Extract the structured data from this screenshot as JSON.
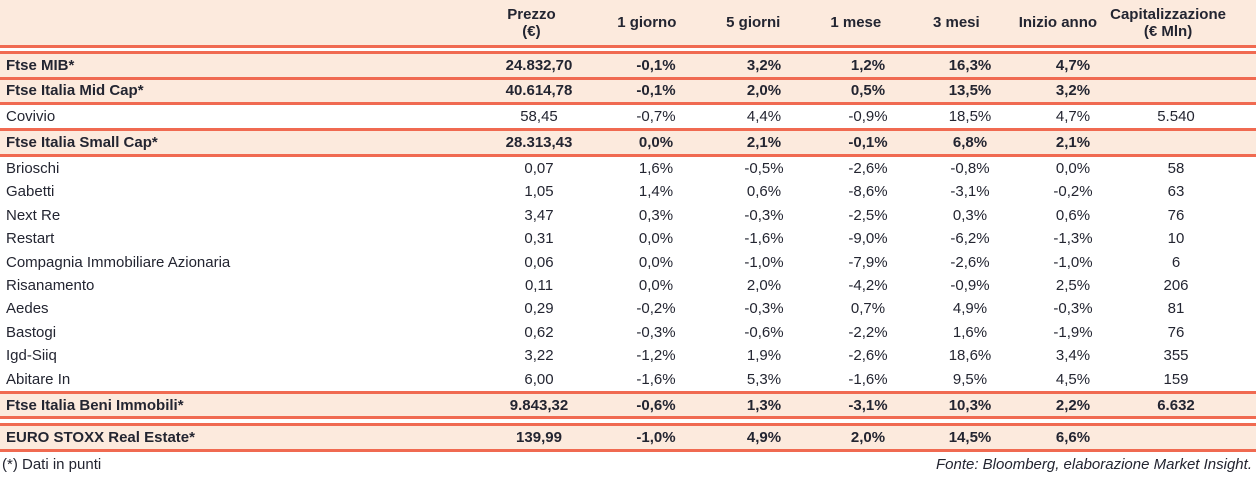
{
  "colors": {
    "accent_border": "#f06a51",
    "highlight_row_bg": "#fceadd",
    "text": "#232531"
  },
  "table": {
    "header": {
      "cols": [
        {
          "label": "Prezzo",
          "sub": "(€)"
        },
        {
          "label": "1 giorno",
          "sub": ""
        },
        {
          "label": "5 giorni",
          "sub": ""
        },
        {
          "label": "1 mese",
          "sub": ""
        },
        {
          "label": "3 mesi",
          "sub": ""
        },
        {
          "label": "Inizio anno",
          "sub": ""
        },
        {
          "label": "Capitalizzazione",
          "sub": "(€ Mln)"
        }
      ]
    },
    "rows": [
      {
        "name": "Ftse MIB*",
        "type": "index",
        "values": [
          "24.832,70",
          "-0,1%",
          "3,2%",
          "1,2%",
          "16,3%",
          "4,7%",
          ""
        ]
      },
      {
        "name": "Ftse Italia Mid Cap*",
        "type": "index",
        "grouped_with_prev": true,
        "values": [
          "40.614,78",
          "-0,1%",
          "2,0%",
          "0,5%",
          "13,5%",
          "3,2%",
          ""
        ]
      },
      {
        "name": "Covivio",
        "type": "stock",
        "values": [
          "58,45",
          "-0,7%",
          "4,4%",
          "-0,9%",
          "18,5%",
          "4,7%",
          "5.540"
        ]
      },
      {
        "name": "Ftse Italia Small Cap*",
        "type": "index",
        "values": [
          "28.313,43",
          "0,0%",
          "2,1%",
          "-0,1%",
          "6,8%",
          "2,1%",
          ""
        ]
      },
      {
        "name": "Brioschi",
        "type": "stock",
        "values": [
          "0,07",
          "1,6%",
          "-0,5%",
          "-2,6%",
          "-0,8%",
          "0,0%",
          "58"
        ]
      },
      {
        "name": "Gabetti",
        "type": "stock",
        "values": [
          "1,05",
          "1,4%",
          "0,6%",
          "-8,6%",
          "-3,1%",
          "-0,2%",
          "63"
        ]
      },
      {
        "name": "Next Re",
        "type": "stock",
        "values": [
          "3,47",
          "0,3%",
          "-0,3%",
          "-2,5%",
          "0,3%",
          "0,6%",
          "76"
        ]
      },
      {
        "name": "Restart",
        "type": "stock",
        "values": [
          "0,31",
          "0,0%",
          "-1,6%",
          "-9,0%",
          "-6,2%",
          "-1,3%",
          "10"
        ]
      },
      {
        "name": "Compagnia Immobiliare Azionaria",
        "type": "stock",
        "values": [
          "0,06",
          "0,0%",
          "-1,0%",
          "-7,9%",
          "-2,6%",
          "-1,0%",
          "6"
        ]
      },
      {
        "name": "Risanamento",
        "type": "stock",
        "values": [
          "0,11",
          "0,0%",
          "2,0%",
          "-4,2%",
          "-0,9%",
          "2,5%",
          "206"
        ]
      },
      {
        "name": "Aedes",
        "type": "stock",
        "values": [
          "0,29",
          "-0,2%",
          "-0,3%",
          "0,7%",
          "4,9%",
          "-0,3%",
          "81"
        ]
      },
      {
        "name": "Bastogi",
        "type": "stock",
        "values": [
          "0,62",
          "-0,3%",
          "-0,6%",
          "-2,2%",
          "1,6%",
          "-1,9%",
          "76"
        ]
      },
      {
        "name": "Igd-Siiq",
        "type": "stock",
        "values": [
          "3,22",
          "-1,2%",
          "1,9%",
          "-2,6%",
          "18,6%",
          "3,4%",
          "355"
        ]
      },
      {
        "name": "Abitare In",
        "type": "stock",
        "values": [
          "6,00",
          "-1,6%",
          "5,3%",
          "-1,6%",
          "9,5%",
          "4,5%",
          "159"
        ]
      },
      {
        "name": "Ftse Italia Beni Immobili*",
        "type": "index",
        "values": [
          "9.843,32",
          "-0,6%",
          "1,3%",
          "-3,1%",
          "10,3%",
          "2,2%",
          "6.632"
        ]
      },
      {
        "name": "EURO STOXX Real Estate*",
        "type": "index",
        "gap_above": true,
        "values": [
          "139,99",
          "-1,0%",
          "4,9%",
          "2,0%",
          "14,5%",
          "6,6%",
          ""
        ]
      }
    ]
  },
  "footer": {
    "left": "(*) Dati in punti",
    "right": "Fonte: Bloomberg, elaborazione Market Insight."
  }
}
